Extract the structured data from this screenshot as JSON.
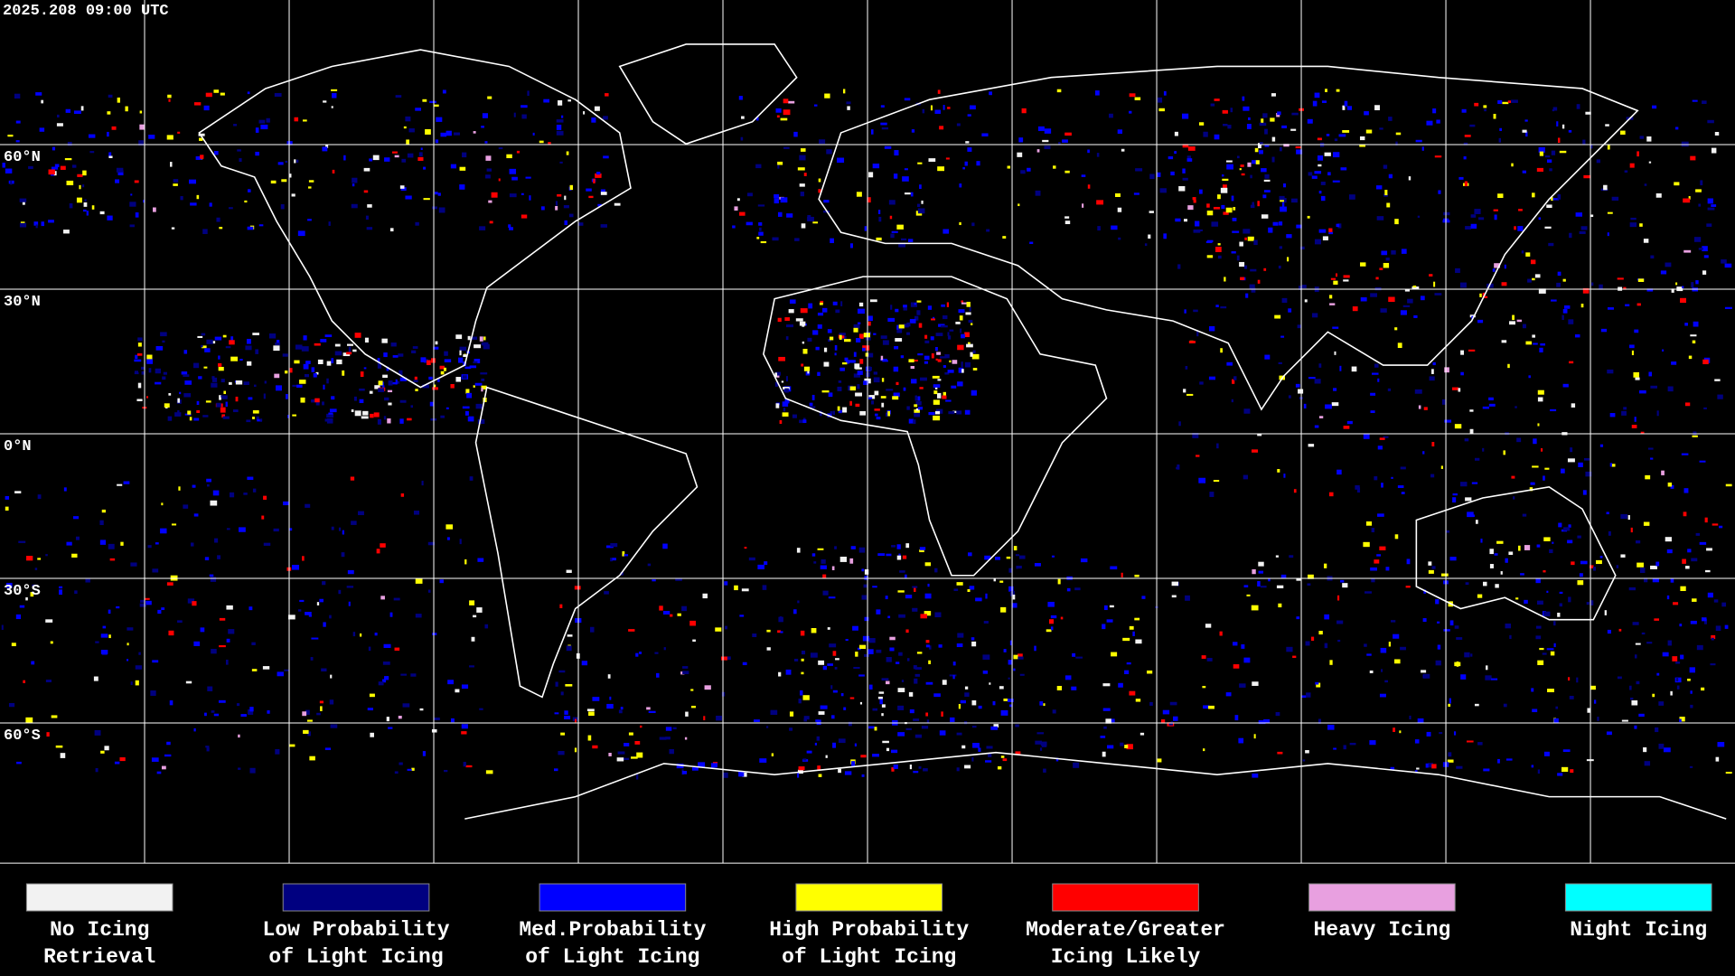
{
  "timestamp": "2025.208 09:00 UTC",
  "latitude_labels": [
    "60°N",
    "30°N",
    "0°N",
    "30°S",
    "60°S"
  ],
  "legend": [
    {
      "lines": [
        "No Icing",
        "Retrieval"
      ],
      "color": "#f2f2f2"
    },
    {
      "lines": [
        "Low Probability",
        "of Light Icing"
      ],
      "color": "#000080"
    },
    {
      "lines": [
        "Med.Probability",
        "of Light Icing"
      ],
      "color": "#0000ff"
    },
    {
      "lines": [
        "High Probability",
        "of Light Icing"
      ],
      "color": "#ffff00"
    },
    {
      "lines": [
        "Moderate/Greater",
        "Icing Likely"
      ],
      "color": "#ff0000"
    },
    {
      "lines": [
        "Heavy Icing"
      ],
      "color": "#e8a0e0"
    },
    {
      "lines": [
        "Night Icing"
      ],
      "color": "#00ffff"
    }
  ]
}
